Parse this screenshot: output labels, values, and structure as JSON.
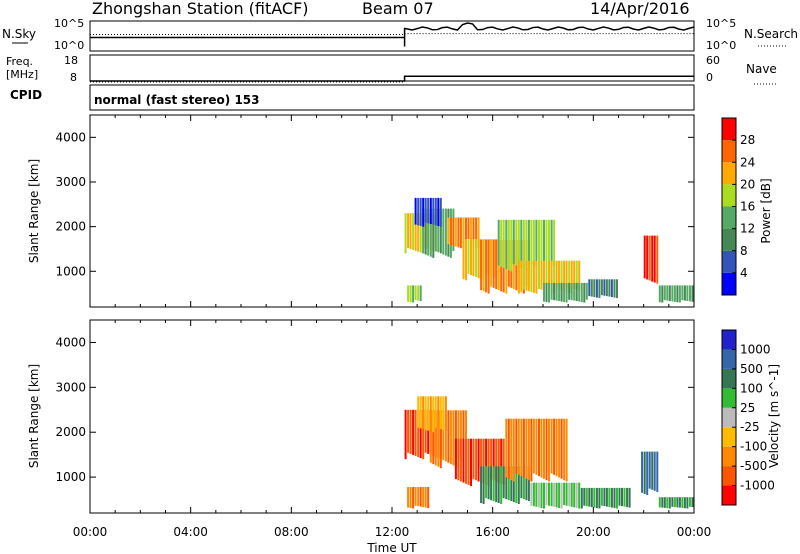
{
  "header": {
    "title": "Zhongshan Station (fitACF)",
    "beam": "Beam 07",
    "date": "14/Apr/2016"
  },
  "top_panel": {
    "left_label": "N.Sky",
    "left_ticks": [
      "10^5",
      "10^0"
    ],
    "right_ticks": [
      "10^5",
      "10^0"
    ],
    "right_label": "N.Search",
    "nsky_level_before": 0.45,
    "nsky_level_after": 0.25
  },
  "freq_panel": {
    "left_label_1": "Freq.",
    "left_label_2": "[MHz]",
    "left_ticks": [
      "18",
      "8"
    ],
    "right_ticks": [
      "60",
      "0"
    ],
    "right_label": "Nave",
    "freq_before": 8,
    "freq_after": 10,
    "nave_after": 12
  },
  "cpid": {
    "label": "CPID",
    "text": "normal (fast stereo) 153"
  },
  "colors": {
    "power": [
      "#0000ff",
      "#3355bb",
      "#448855",
      "#55aa66",
      "#aadd22",
      "#ffaa00",
      "#ff6600",
      "#ff0000"
    ],
    "velocity": [
      "#ff0000",
      "#ff5500",
      "#ff8800",
      "#ffbb00",
      "#bbbbbb",
      "#33bb33",
      "#337755",
      "#3366aa",
      "#2222cc"
    ]
  },
  "x_axis": {
    "label": "Time UT",
    "ticks": [
      "00:00",
      "04:00",
      "08:00",
      "12:00",
      "16:00",
      "20:00",
      "00:00"
    ]
  },
  "chart_data": [
    {
      "type": "heatmap",
      "quantity": "Power",
      "colorbar_label": "Power [dB]",
      "colorbar_ticks": [
        "4",
        "8",
        "12",
        "16",
        "20",
        "24",
        "28"
      ],
      "ylabel": "Slant Range [km]",
      "yticks": [
        "1000",
        "2000",
        "3000",
        "4000"
      ],
      "xlim_hours": [
        0,
        24
      ],
      "ylim_km": [
        200,
        4500
      ],
      "data_start_hour": 12.5,
      "patches": [
        {
          "t0": 12.5,
          "t1": 13.8,
          "r0": 1400,
          "r1": 2300,
          "c": 5
        },
        {
          "t0": 12.6,
          "t1": 13.2,
          "r0": 300,
          "r1": 700,
          "c": 4
        },
        {
          "t0": 13.2,
          "t1": 14.5,
          "r0": 1300,
          "r1": 2500,
          "c": 3
        },
        {
          "t0": 14.2,
          "t1": 15.5,
          "r0": 1500,
          "r1": 2300,
          "c": 6
        },
        {
          "t0": 14.8,
          "t1": 16.2,
          "r0": 800,
          "r1": 1900,
          "c": 5
        },
        {
          "t0": 15.5,
          "t1": 17.5,
          "r0": 500,
          "r1": 1700,
          "c": 6
        },
        {
          "t0": 16.2,
          "t1": 18.5,
          "r0": 1000,
          "r1": 2200,
          "c": 4
        },
        {
          "t0": 17.0,
          "t1": 19.5,
          "r0": 500,
          "r1": 1300,
          "c": 5
        },
        {
          "t0": 18.0,
          "t1": 19.8,
          "r0": 300,
          "r1": 800,
          "c": 3
        },
        {
          "t0": 19.8,
          "t1": 21.0,
          "r0": 400,
          "r1": 900,
          "c": 2
        },
        {
          "t0": 22.0,
          "t1": 22.6,
          "r0": 700,
          "r1": 1800,
          "c": 7
        },
        {
          "t0": 22.6,
          "t1": 24.0,
          "r0": 300,
          "r1": 700,
          "c": 3
        },
        {
          "t0": 12.9,
          "t1": 14.0,
          "r0": 2000,
          "r1": 2700,
          "c": 1
        }
      ]
    },
    {
      "type": "heatmap",
      "quantity": "Velocity",
      "colorbar_label": "Velocity [m s^-1]",
      "colorbar_ticks": [
        "1000",
        "500",
        "100",
        "25",
        "-25",
        "-100",
        "-500",
        "-1000"
      ],
      "ylabel": "Slant Range [km]",
      "yticks": [
        "1000",
        "2000",
        "3000",
        "4000"
      ],
      "xlim_hours": [
        0,
        24
      ],
      "ylim_km": [
        200,
        4500
      ],
      "data_start_hour": 12.5,
      "patches": [
        {
          "t0": 12.5,
          "t1": 14.0,
          "r0": 1400,
          "r1": 2500,
          "c": 1
        },
        {
          "t0": 12.6,
          "t1": 13.5,
          "r0": 300,
          "r1": 800,
          "c": 2
        },
        {
          "t0": 13.5,
          "t1": 15.0,
          "r0": 1200,
          "r1": 2600,
          "c": 2
        },
        {
          "t0": 14.5,
          "t1": 16.5,
          "r0": 800,
          "r1": 2000,
          "c": 1
        },
        {
          "t0": 15.5,
          "t1": 17.5,
          "r0": 400,
          "r1": 1400,
          "c": 6
        },
        {
          "t0": 16.5,
          "t1": 19.0,
          "r0": 900,
          "r1": 2300,
          "c": 2
        },
        {
          "t0": 17.5,
          "t1": 19.5,
          "r0": 300,
          "r1": 900,
          "c": 5
        },
        {
          "t0": 19.5,
          "t1": 21.5,
          "r0": 300,
          "r1": 800,
          "c": 6
        },
        {
          "t0": 21.9,
          "t1": 22.6,
          "r0": 600,
          "r1": 1700,
          "c": 7
        },
        {
          "t0": 22.6,
          "t1": 24.0,
          "r0": 300,
          "r1": 600,
          "c": 6
        },
        {
          "t0": 13.0,
          "t1": 14.2,
          "r0": 2000,
          "r1": 2800,
          "c": 3
        }
      ]
    }
  ]
}
